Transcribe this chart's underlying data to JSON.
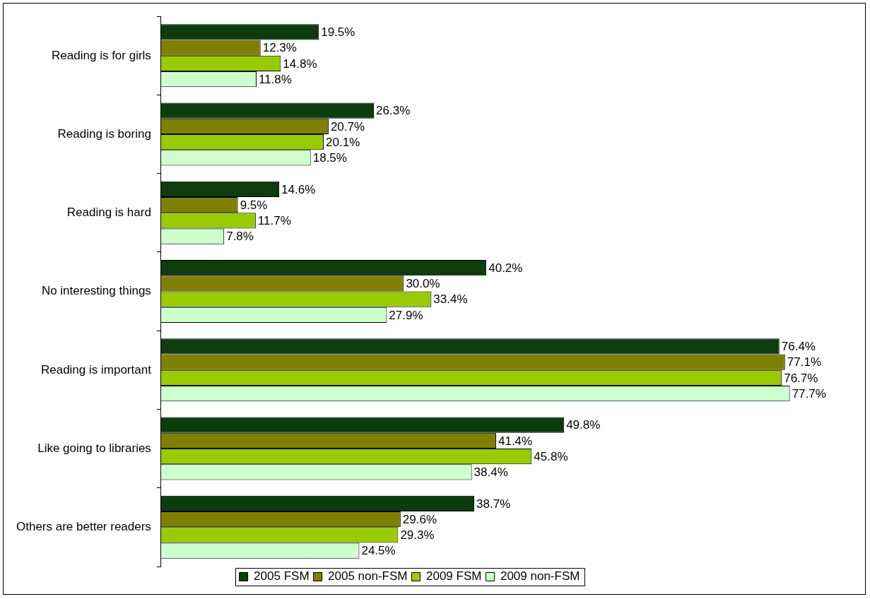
{
  "chart_data": {
    "type": "bar",
    "orientation": "horizontal",
    "categories": [
      "Reading is for girls",
      "Reading is boring",
      "Reading is hard",
      "No interesting things",
      "Reading is important",
      "Like going to libraries",
      "Others are better readers"
    ],
    "series": [
      {
        "name": "2005 FSM",
        "color": "#0d3d0d",
        "values": [
          19.5,
          26.3,
          14.6,
          40.2,
          76.4,
          49.8,
          38.7
        ],
        "value_labels": [
          "19.5%",
          "26.3%",
          "14.6%",
          "40.2%",
          "76.4%",
          "49.8%",
          "38.7%"
        ]
      },
      {
        "name": "2005 non-FSM",
        "color": "#808000",
        "values": [
          12.3,
          20.7,
          9.5,
          30.0,
          77.1,
          41.4,
          29.6
        ],
        "value_labels": [
          "12.3%",
          "20.7%",
          "9.5%",
          "30.0%",
          "77.1%",
          "41.4%",
          "29.6%"
        ]
      },
      {
        "name": "2009 FSM",
        "color": "#99cc00",
        "values": [
          14.8,
          20.1,
          11.7,
          33.4,
          76.7,
          45.8,
          29.3
        ],
        "value_labels": [
          "14.8%",
          "20.1%",
          "11.7%",
          "33.4%",
          "76.7%",
          "45.8%",
          "29.3%"
        ]
      },
      {
        "name": "2009 non-FSM",
        "color": "#ccffcc",
        "values": [
          11.8,
          18.5,
          7.8,
          27.9,
          77.7,
          38.4,
          24.5
        ],
        "value_labels": [
          "11.8%",
          "18.5%",
          "7.8%",
          "27.9%",
          "77.7%",
          "38.4%",
          "24.5%"
        ]
      }
    ],
    "legend": "bottom"
  }
}
